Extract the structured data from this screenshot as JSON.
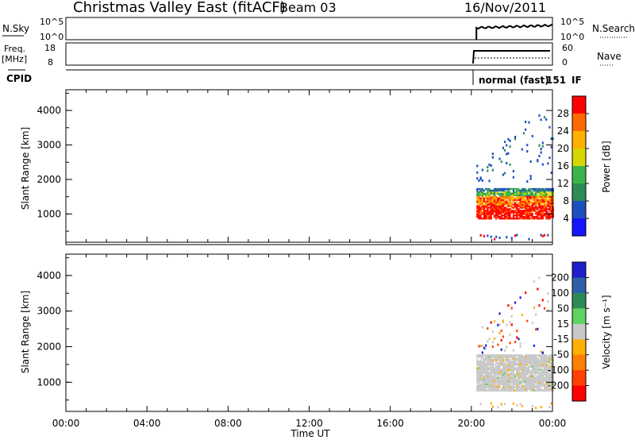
{
  "header": {
    "title": "Christmas Valley East (fitACF)",
    "beam": "Beam 03",
    "date": "16/Nov/2011"
  },
  "strip_nsky": {
    "label": "N.Sky",
    "ticks": [
      "10^5",
      "10^0"
    ],
    "right_ticks": [
      "10^5",
      "10^0"
    ],
    "right_label": "N.Search"
  },
  "strip_freq": {
    "label1": "Freq.",
    "label2": "[MHz]",
    "ticks": [
      "18",
      "8"
    ],
    "right_ticks": [
      "60",
      "0"
    ],
    "right_label": "Nave"
  },
  "cpid": {
    "label": "CPID",
    "text": "normal (fast)",
    "id": "151",
    "suffix": "IF"
  },
  "axes": {
    "ylabel": "Slant Range [km]",
    "yticks": [
      "4000",
      "3000",
      "2000",
      "1000"
    ],
    "xlabel": "Time UT",
    "xticks": [
      "00:00",
      "04:00",
      "08:00",
      "12:00",
      "16:00",
      "20:00",
      "00:00"
    ]
  },
  "power_scale": {
    "label": "Power [dB]",
    "ticks": [
      "28",
      "24",
      "20",
      "16",
      "12",
      "8",
      "4"
    ],
    "colors": [
      "#ff0000",
      "#ff6a00",
      "#ffb000",
      "#d6d600",
      "#3cb44b",
      "#2e8b57",
      "#1e4fbf",
      "#1515ff"
    ]
  },
  "velocity_scale": {
    "label": "Velocity [m s⁻¹]",
    "ticks": [
      "200",
      "100",
      "50",
      "15",
      "-15",
      "-50",
      "-100",
      "-200"
    ],
    "colors": [
      "#1e1ecc",
      "#2e5fa8",
      "#2e8b57",
      "#5fd35f",
      "#c8c8c8",
      "#ffb000",
      "#ff7f00",
      "#ff4000",
      "#ff0000"
    ]
  },
  "chart_data": {
    "type": "heatmap",
    "title": "Christmas Valley East (fitACF)",
    "x_range_hours": [
      0,
      24
    ],
    "y_range_km": [
      180,
      4600
    ],
    "observation_start": "20:15",
    "observation_end": "24:00",
    "power_band_km": {
      "strong_red": [
        850,
        1250
      ],
      "orange_yellow": [
        1250,
        1500
      ],
      "green": [
        1500,
        1650
      ],
      "blue": [
        1650,
        1750
      ]
    },
    "velocity_band_km": {
      "grey_low_velocity": [
        750,
        1750
      ]
    }
  }
}
